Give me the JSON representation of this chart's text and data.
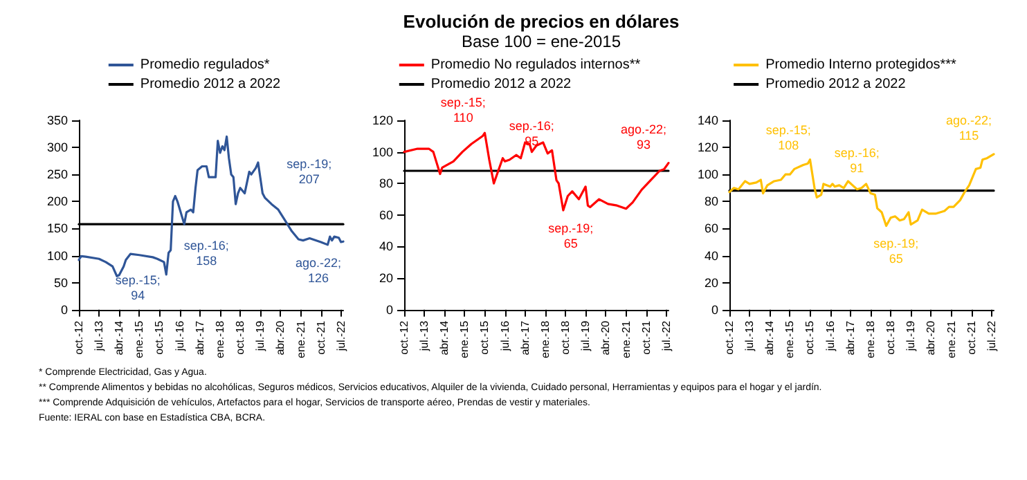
{
  "chart_data": [
    {
      "type": "line",
      "legend": "top",
      "grid": false,
      "marker": "none",
      "line_style": "solid",
      "xlim": [
        "2012-10",
        "2022-08"
      ],
      "xticks": [
        {
          "value": "2012-10",
          "label": "oct.-12"
        },
        {
          "value": "2013-07",
          "label": "jul.-13"
        },
        {
          "value": "2014-04",
          "label": "abr.-14"
        },
        {
          "value": "2015-01",
          "label": "ene.-15"
        },
        {
          "value": "2015-10",
          "label": "oct.-15"
        },
        {
          "value": "2016-07",
          "label": "jul.-16"
        },
        {
          "value": "2017-04",
          "label": "abr.-17"
        },
        {
          "value": "2018-01",
          "label": "ene.-18"
        },
        {
          "value": "2018-10",
          "label": "oct.-18"
        },
        {
          "value": "2019-07",
          "label": "jul.-19"
        },
        {
          "value": "2020-04",
          "label": "abr.-20"
        },
        {
          "value": "2021-01",
          "label": "ene.-21"
        },
        {
          "value": "2021-10",
          "label": "oct.-21"
        },
        {
          "value": "2022-07",
          "label": "jul.-22"
        }
      ],
      "ylim": [
        0,
        350
      ],
      "yticks": [
        0,
        50,
        100,
        150,
        200,
        250,
        300,
        350
      ],
      "series": [
        {
          "name": "Promedio regulados*",
          "color": "#2f5597",
          "x": [
            "2012-10",
            "2012-11",
            "2013-01",
            "2013-07",
            "2013-10",
            "2014-01",
            "2014-03",
            "2014-04",
            "2014-06",
            "2014-07",
            "2014-09",
            "2015-01",
            "2015-07",
            "2015-09",
            "2015-12",
            "2016-01",
            "2016-02",
            "2016-03",
            "2016-04",
            "2016-05",
            "2016-06",
            "2016-09",
            "2016-10",
            "2016-12",
            "2017-01",
            "2017-02",
            "2017-03",
            "2017-05",
            "2017-07",
            "2017-08",
            "2017-11",
            "2017-12",
            "2018-01",
            "2018-02",
            "2018-03",
            "2018-04",
            "2018-05",
            "2018-06",
            "2018-07",
            "2018-08",
            "2018-09",
            "2018-10",
            "2018-12",
            "2019-02",
            "2019-03",
            "2019-05",
            "2019-06",
            "2019-08",
            "2019-09",
            "2019-12",
            "2020-03",
            "2020-06",
            "2020-09",
            "2020-12",
            "2021-02",
            "2021-05",
            "2021-10",
            "2022-01",
            "2022-02",
            "2022-03",
            "2022-04",
            "2022-06",
            "2022-07",
            "2022-08"
          ],
          "values": [
            92,
            99,
            98,
            94,
            88,
            80,
            62,
            64,
            80,
            92,
            103,
            101,
            97,
            94,
            88,
            65,
            105,
            110,
            200,
            210,
            200,
            158,
            180,
            185,
            180,
            225,
            258,
            265,
            265,
            245,
            245,
            312,
            290,
            302,
            295,
            320,
            280,
            250,
            245,
            195,
            215,
            225,
            215,
            255,
            250,
            262,
            272,
            215,
            207,
            195,
            185,
            165,
            145,
            130,
            128,
            132,
            125,
            120,
            135,
            128,
            135,
            133,
            125,
            126
          ]
        },
        {
          "name": "Promedio 2012 a 2022",
          "color": "#000000",
          "x": [
            "2012-10",
            "2022-08"
          ],
          "values": [
            158,
            158
          ]
        }
      ],
      "annotations": [
        {
          "text": "sep.-15;\n94",
          "x": "2015-09",
          "y": 94
        },
        {
          "text": "sep.-16;\n158",
          "x": "2016-09",
          "y": 158
        },
        {
          "text": "sep.-19;\n207",
          "x": "2019-09",
          "y": 207
        },
        {
          "text": "ago.-22;\n126",
          "x": "2022-08",
          "y": 126
        }
      ]
    },
    {
      "type": "line",
      "title": "Evolución de precios en dólares",
      "subtitle": "Base 100 = ene-2015",
      "legend": "top",
      "grid": false,
      "marker": "none",
      "line_style": "solid",
      "xlim": [
        "2012-10",
        "2022-08"
      ],
      "xticks": [
        {
          "value": "2012-10",
          "label": "oct.-12"
        },
        {
          "value": "2013-07",
          "label": "jul.-13"
        },
        {
          "value": "2014-04",
          "label": "abr.-14"
        },
        {
          "value": "2015-01",
          "label": "ene.-15"
        },
        {
          "value": "2015-10",
          "label": "oct.-15"
        },
        {
          "value": "2016-07",
          "label": "jul.-16"
        },
        {
          "value": "2017-04",
          "label": "abr.-17"
        },
        {
          "value": "2018-01",
          "label": "ene.-18"
        },
        {
          "value": "2018-10",
          "label": "oct.-18"
        },
        {
          "value": "2019-07",
          "label": "jul.-19"
        },
        {
          "value": "2020-04",
          "label": "abr.-20"
        },
        {
          "value": "2021-01",
          "label": "ene.-21"
        },
        {
          "value": "2021-10",
          "label": "oct.-21"
        },
        {
          "value": "2022-07",
          "label": "jul.-22"
        }
      ],
      "ylim": [
        0,
        120
      ],
      "yticks": [
        0,
        20,
        40,
        60,
        80,
        100,
        120
      ],
      "series": [
        {
          "name": "Promedio No regulados internos**",
          "color": "#ff0000",
          "x": [
            "2012-10",
            "2013-04",
            "2013-09",
            "2013-11",
            "2014-02",
            "2014-03",
            "2014-08",
            "2014-12",
            "2015-04",
            "2015-09",
            "2015-10",
            "2015-12",
            "2016-02",
            "2016-04",
            "2016-06",
            "2016-07",
            "2016-09",
            "2016-12",
            "2017-02",
            "2017-04",
            "2017-06",
            "2017-07",
            "2017-09",
            "2017-12",
            "2018-02",
            "2018-04",
            "2018-06",
            "2018-07",
            "2018-09",
            "2018-11",
            "2019-01",
            "2019-04",
            "2019-07",
            "2019-08",
            "2019-09",
            "2020-01",
            "2020-05",
            "2020-09",
            "2021-01",
            "2021-04",
            "2021-08",
            "2021-12",
            "2022-04",
            "2022-06",
            "2022-08"
          ],
          "values": [
            100,
            102,
            102,
            100,
            86,
            90,
            94,
            100,
            105,
            110,
            112,
            95,
            80,
            88,
            96,
            94,
            95,
            98,
            96,
            106,
            105,
            100,
            104,
            106,
            99,
            101,
            82,
            80,
            63,
            72,
            75,
            70,
            78,
            66,
            65,
            70,
            67,
            66,
            64,
            68,
            76,
            82,
            88,
            89,
            93
          ]
        },
        {
          "name": "Promedio 2012 a 2022",
          "color": "#000000",
          "x": [
            "2012-10",
            "2022-08"
          ],
          "values": [
            88,
            88
          ]
        }
      ],
      "annotations": [
        {
          "text": "sep.-15;\n110",
          "x": "2015-09",
          "y": 110
        },
        {
          "text": "sep.-16;\n95",
          "x": "2016-09",
          "y": 95
        },
        {
          "text": "sep.-19;\n65",
          "x": "2019-09",
          "y": 65
        },
        {
          "text": "ago.-22;\n93",
          "x": "2022-08",
          "y": 93
        }
      ]
    },
    {
      "type": "line",
      "legend": "top",
      "grid": false,
      "marker": "none",
      "line_style": "solid",
      "xlim": [
        "2012-10",
        "2022-08"
      ],
      "xticks": [
        {
          "value": "2012-10",
          "label": "oct.-12"
        },
        {
          "value": "2013-07",
          "label": "jul.-13"
        },
        {
          "value": "2014-04",
          "label": "abr.-14"
        },
        {
          "value": "2015-01",
          "label": "ene.-15"
        },
        {
          "value": "2015-10",
          "label": "oct.-15"
        },
        {
          "value": "2016-07",
          "label": "jul.-16"
        },
        {
          "value": "2017-04",
          "label": "abr.-17"
        },
        {
          "value": "2018-01",
          "label": "ene.-18"
        },
        {
          "value": "2018-10",
          "label": "oct.-18"
        },
        {
          "value": "2019-07",
          "label": "jul.-19"
        },
        {
          "value": "2020-04",
          "label": "abr.-20"
        },
        {
          "value": "2021-01",
          "label": "ene.-21"
        },
        {
          "value": "2021-10",
          "label": "oct.-21"
        },
        {
          "value": "2022-07",
          "label": "jul.-22"
        }
      ],
      "ylim": [
        0,
        140
      ],
      "yticks": [
        0,
        20,
        40,
        60,
        80,
        100,
        120,
        140
      ],
      "series": [
        {
          "name": "Promedio Interno protegidos***",
          "color": "#ffc000",
          "x": [
            "2012-10",
            "2012-12",
            "2013-02",
            "2013-05",
            "2013-07",
            "2013-10",
            "2013-12",
            "2014-01",
            "2014-03",
            "2014-06",
            "2014-09",
            "2014-11",
            "2015-01",
            "2015-03",
            "2015-07",
            "2015-09",
            "2015-10",
            "2015-12",
            "2016-01",
            "2016-03",
            "2016-04",
            "2016-07",
            "2016-08",
            "2016-09",
            "2016-11",
            "2017-01",
            "2017-03",
            "2017-05",
            "2017-07",
            "2017-09",
            "2017-11",
            "2018-01",
            "2018-03",
            "2018-04",
            "2018-06",
            "2018-08",
            "2018-10",
            "2018-12",
            "2019-02",
            "2019-04",
            "2019-06",
            "2019-07",
            "2019-09",
            "2019-10",
            "2019-12",
            "2020-03",
            "2020-06",
            "2020-10",
            "2020-12",
            "2021-02",
            "2021-05",
            "2021-07",
            "2021-09",
            "2021-12",
            "2022-02",
            "2022-03",
            "2022-05",
            "2022-08"
          ],
          "values": [
            87,
            90,
            89,
            95,
            93,
            94,
            96,
            86,
            92,
            95,
            96,
            100,
            100,
            104,
            107,
            108,
            111,
            90,
            83,
            85,
            93,
            91,
            93,
            91,
            92,
            90,
            95,
            92,
            89,
            90,
            93,
            86,
            85,
            75,
            72,
            62,
            68,
            69,
            66,
            67,
            72,
            63,
            65,
            66,
            74,
            71,
            71,
            73,
            76,
            76,
            81,
            87,
            92,
            104,
            105,
            111,
            112,
            115
          ]
        },
        {
          "name": "Promedio 2012 a 2022",
          "color": "#000000",
          "x": [
            "2012-10",
            "2022-08"
          ],
          "values": [
            88,
            88
          ]
        }
      ],
      "annotations": [
        {
          "text": "sep.-15;\n108",
          "x": "2015-09",
          "y": 108
        },
        {
          "text": "sep.-16;\n91",
          "x": "2016-09",
          "y": 91
        },
        {
          "text": "sep.-19;\n65",
          "x": "2019-09",
          "y": 65
        },
        {
          "text": "ago.-22;\n115",
          "x": "2022-08",
          "y": 115
        },
        "* Comprende Electricidad, Gas y Agua.",
        "** Comprende Alimentos y bebidas no alcohólicas, Seguros médicos, Servicios educativos, Alquiler de la vivienda, Cuidado personal, Herramientas y equipos para el hogar y el jardín.",
        "*** Comprende Adquisición de vehículos, Artefactos para el hogar, Servicios de transporte aéreo, Prendas de vestir y materiales.",
        "Fuente: IERAL con base en Estadística CBA, BCRA."
      ]
    }
  ]
}
